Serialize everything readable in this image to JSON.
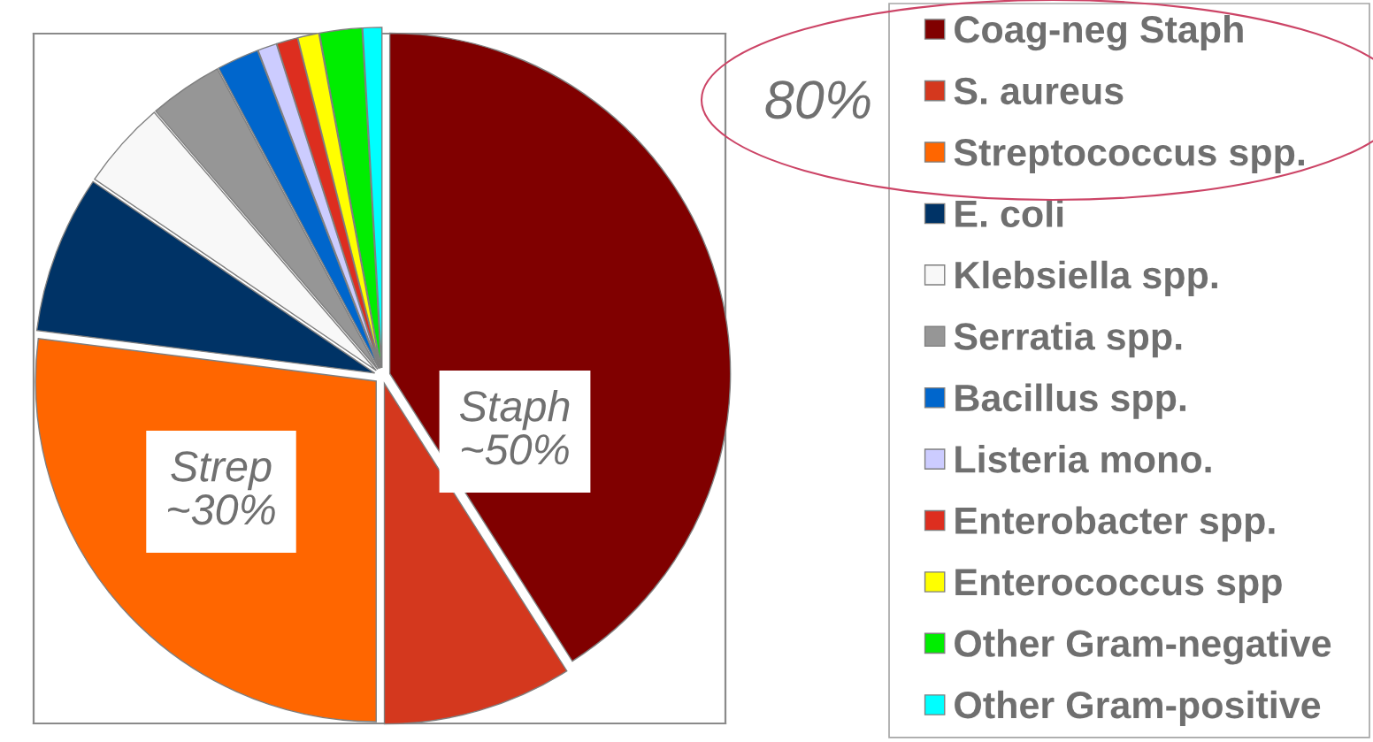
{
  "chart_data": {
    "type": "pie",
    "categories": [
      "Coag-neg Staph",
      "S. aureus",
      "Streptococcus spp.",
      "E. coli",
      "Klebsiella spp.",
      "Serratia spp.",
      "Bacillus spp.",
      "Listeria mono.",
      "Enterobacter spp.",
      "Enterococcus spp",
      "Other Gram-negative",
      "Other Gram-positive"
    ],
    "values": [
      41,
      9,
      27,
      7.5,
      4.2,
      3.5,
      2,
      0.9,
      1,
      1,
      2,
      0.9
    ],
    "colors": [
      "#800000",
      "#d4381e",
      "#ff6600",
      "#003366",
      "#f8f8f8",
      "#969696",
      "#0066cc",
      "#ccccff",
      "#dd2e1f",
      "#ffff00",
      "#00ee00",
      "#00ffff"
    ],
    "legend": "right",
    "annotations": [
      "Staph\n~50%",
      "Strep\n~30%",
      "80%"
    ]
  }
}
